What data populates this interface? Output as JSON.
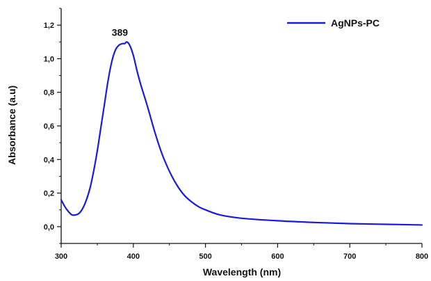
{
  "chart_data": {
    "type": "line",
    "xlabel": "Wavelength (nm)",
    "ylabel": "Absorbance (a.u)",
    "xlim": [
      300,
      800
    ],
    "ylim": [
      -0.1,
      1.3
    ],
    "x_ticks": [
      "300",
      "400",
      "500",
      "600",
      "700",
      "800"
    ],
    "y_ticks": [
      "0,0",
      "0,2",
      "0,4",
      "0,6",
      "0,8",
      "1,0",
      "1,2"
    ],
    "grid": false,
    "legend_position": "top-right",
    "series": [
      {
        "name": "AgNPs-PC",
        "color": "#1a1adb",
        "x": [
          300,
          305,
          310,
          315,
          320,
          325,
          330,
          335,
          340,
          345,
          350,
          355,
          360,
          365,
          370,
          375,
          380,
          385,
          388,
          391,
          395,
          400,
          405,
          410,
          420,
          430,
          440,
          450,
          460,
          470,
          480,
          490,
          500,
          520,
          550,
          600,
          650,
          700,
          750,
          800
        ],
        "y": [
          0.16,
          0.12,
          0.09,
          0.07,
          0.07,
          0.08,
          0.11,
          0.16,
          0.23,
          0.33,
          0.45,
          0.59,
          0.73,
          0.87,
          0.98,
          1.05,
          1.08,
          1.09,
          1.09,
          1.1,
          1.08,
          1.02,
          0.93,
          0.85,
          0.71,
          0.56,
          0.43,
          0.33,
          0.25,
          0.19,
          0.15,
          0.12,
          0.1,
          0.07,
          0.05,
          0.035,
          0.025,
          0.018,
          0.014,
          0.01
        ]
      }
    ],
    "annotations": [
      {
        "text": "389",
        "x": 389,
        "y": 1.1
      }
    ]
  }
}
